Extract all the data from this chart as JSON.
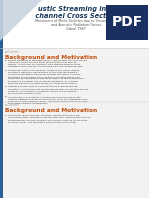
{
  "title_line1": "ustic Streaming in a",
  "title_line2": " channel Cross Section",
  "subtitle1": "Movement of Micro Particles due to Viscous Drag",
  "subtitle2": "and Acoustic Radiation Forces",
  "author": "Gibral 7987",
  "section1_title": "Background and Motivation",
  "section2_title": "Background and Motivation",
  "bg_color": "#f0eeec",
  "header_bg": "#ffffff",
  "content_bg": "#f4f2f0",
  "blue_bar_color": "#2a6096",
  "title_color": "#1a3a5c",
  "section_title_color": "#c05010",
  "body_color": "#333333",
  "pdf_bg": "#1a3060",
  "triangle_color": "#c8d4e0",
  "divider_color": "#cccccc",
  "small_label_color": "#999999"
}
